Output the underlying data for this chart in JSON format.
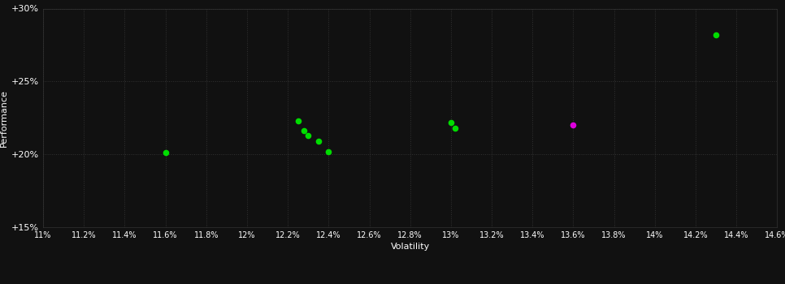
{
  "background_color": "#111111",
  "grid_color": "#333333",
  "text_color": "#ffffff",
  "xlabel": "Volatility",
  "ylabel": "Performance",
  "xlim": [
    0.11,
    0.146
  ],
  "ylim": [
    0.15,
    0.3
  ],
  "xticks": [
    0.11,
    0.112,
    0.114,
    0.116,
    0.118,
    0.12,
    0.122,
    0.124,
    0.126,
    0.128,
    0.13,
    0.132,
    0.134,
    0.136,
    0.138,
    0.14,
    0.142,
    0.144,
    0.146
  ],
  "yticks": [
    0.15,
    0.2,
    0.25,
    0.3
  ],
  "green_points": [
    [
      0.116,
      0.201
    ],
    [
      0.1225,
      0.223
    ],
    [
      0.1228,
      0.216
    ],
    [
      0.123,
      0.213
    ],
    [
      0.1235,
      0.209
    ],
    [
      0.124,
      0.202
    ],
    [
      0.13,
      0.222
    ],
    [
      0.1302,
      0.218
    ],
    [
      0.143,
      0.282
    ]
  ],
  "magenta_points": [
    [
      0.136,
      0.22
    ]
  ],
  "point_size": 20,
  "green_color": "#00dd00",
  "magenta_color": "#dd00dd"
}
